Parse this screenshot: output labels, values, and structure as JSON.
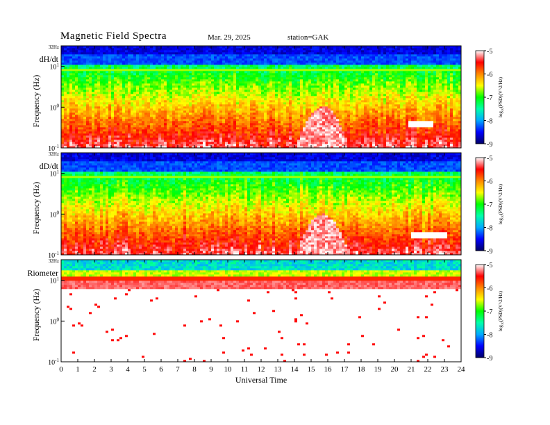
{
  "header": {
    "title": "Magnetic  Field  Spectra",
    "date": "Mar. 29, 2025",
    "station": "station=GAK"
  },
  "colors": {
    "colormap": [
      "#000066",
      "#0000ff",
      "#00aaff",
      "#00ffaa",
      "#00ff00",
      "#ffff00",
      "#ff8800",
      "#ff0000",
      "#ffffff"
    ]
  },
  "chart_data": [
    {
      "type": "heatmap",
      "panel_label": "dH/dt",
      "ylabel": "Frequency  (Hz)",
      "yscale": "log",
      "ylim": [
        0.1,
        32
      ],
      "yticks": [
        {
          "value": 32,
          "base": "32Hz",
          "exp": ""
        },
        {
          "value": 10,
          "base": "10",
          "exp": "1"
        },
        {
          "value": 1,
          "base": "10",
          "exp": "0"
        },
        {
          "value": 0.1,
          "base": "10",
          "exp": "-1"
        }
      ],
      "xlim": [
        0,
        24
      ],
      "xticks": [
        0,
        1,
        2,
        3,
        4,
        5,
        6,
        7,
        8,
        9,
        10,
        11,
        12,
        13,
        14,
        15,
        16,
        17,
        18,
        19,
        20,
        21,
        22,
        23,
        24
      ],
      "xlabel": "",
      "colorbar": {
        "min": -9,
        "max": -5,
        "ticks": [
          -5,
          -6,
          -7,
          -8,
          -9
        ],
        "label": "log10(PSD)(V^2/Hz)",
        "label_base": "log",
        "label_sub": "10",
        "label_rest": "(PSD)(V^2/Hz)"
      },
      "features": [
        {
          "name": "white-patch",
          "x_start": 20.8,
          "x_end": 22.4,
          "y_center": 0.38,
          "y_halfwidth_decades": 0.08
        },
        {
          "name": "red-hump",
          "x_center": 15.7,
          "width": 1.5,
          "y_peak": 1.05
        }
      ]
    },
    {
      "type": "heatmap",
      "panel_label": "dD/dt",
      "ylabel": "Frequency  (Hz)",
      "yscale": "log",
      "ylim": [
        0.1,
        32
      ],
      "yticks": [
        {
          "value": 32,
          "base": "32Hz",
          "exp": ""
        },
        {
          "value": 10,
          "base": "10",
          "exp": "1"
        },
        {
          "value": 1,
          "base": "10",
          "exp": "0"
        },
        {
          "value": 0.1,
          "base": "10",
          "exp": "-1"
        }
      ],
      "xlim": [
        0,
        24
      ],
      "xticks": [
        0,
        1,
        2,
        3,
        4,
        5,
        6,
        7,
        8,
        9,
        10,
        11,
        12,
        13,
        14,
        15,
        16,
        17,
        18,
        19,
        20,
        21,
        22,
        23,
        24
      ],
      "xlabel": "",
      "colorbar": {
        "min": -9,
        "max": -5,
        "ticks": [
          -5,
          -6,
          -7,
          -8,
          -9
        ],
        "label": "log10(PSD)(V^2/Hz)",
        "label_base": "log",
        "label_sub": "10",
        "label_rest": "(PSD)(V^2/Hz)"
      },
      "features": [
        {
          "name": "white-patch",
          "x_start": 21.0,
          "x_end": 23.2,
          "y_center": 0.32,
          "y_halfwidth_decades": 0.08
        },
        {
          "name": "red-hump",
          "x_center": 15.7,
          "width": 1.5,
          "y_peak": 1.0
        }
      ]
    },
    {
      "type": "heatmap",
      "panel_label": "Riometer",
      "ylabel": "Frequency  (Hz)",
      "yscale": "log",
      "ylim": [
        0.1,
        32
      ],
      "yticks": [
        {
          "value": 32,
          "base": "32Hz",
          "exp": ""
        },
        {
          "value": 10,
          "base": "10",
          "exp": "1"
        },
        {
          "value": 1,
          "base": "10",
          "exp": "0"
        },
        {
          "value": 0.1,
          "base": "10",
          "exp": "-1"
        }
      ],
      "xlim": [
        0,
        24
      ],
      "xticks": [
        0,
        1,
        2,
        3,
        4,
        5,
        6,
        7,
        8,
        9,
        10,
        11,
        12,
        13,
        14,
        15,
        16,
        17,
        18,
        19,
        20,
        21,
        22,
        23,
        24
      ],
      "xlabel": "Universal Time",
      "colorbar": {
        "min": -9,
        "max": -5,
        "ticks": [
          -5,
          -6,
          -7,
          -8,
          -9
        ],
        "label": "log10(PSD)(V^2/Hz)",
        "label_base": "log",
        "label_sub": "10",
        "label_rest": "(PSD)(V^2/Hz)"
      },
      "features": []
    }
  ]
}
